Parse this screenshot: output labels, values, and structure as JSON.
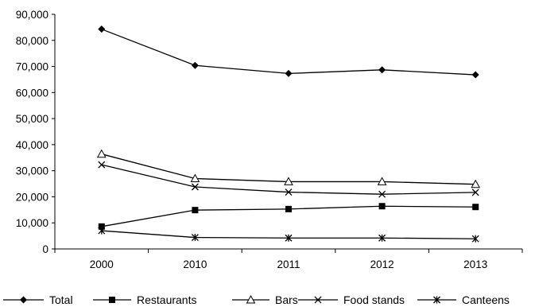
{
  "chart_data": {
    "type": "line",
    "title": "",
    "xlabel": "",
    "ylabel": "",
    "categories": [
      "2000",
      "2010",
      "2011",
      "2012",
      "2013"
    ],
    "ylim": [
      0,
      90000
    ],
    "yticks": [
      0,
      10000,
      20000,
      30000,
      40000,
      50000,
      60000,
      70000,
      80000,
      90000
    ],
    "ytick_labels": [
      "0",
      "10,000",
      "20,000",
      "30,000",
      "40,000",
      "50,000",
      "60,000",
      "70,000",
      "80,000",
      "90,000"
    ],
    "grid": false,
    "legend_position": "bottom",
    "series": [
      {
        "name": "Total",
        "marker": "diamond",
        "values": [
          84300,
          70400,
          67300,
          68700,
          66800
        ]
      },
      {
        "name": "Restaurants",
        "marker": "square",
        "values": [
          8600,
          14900,
          15300,
          16400,
          16100
        ]
      },
      {
        "name": "Bars",
        "marker": "triangle-open",
        "values": [
          36400,
          27000,
          25800,
          25800,
          24800
        ]
      },
      {
        "name": "Food stands",
        "marker": "x",
        "values": [
          32300,
          23800,
          21800,
          21000,
          21700
        ]
      },
      {
        "name": "Canteens",
        "marker": "asterisk",
        "values": [
          7000,
          4400,
          4200,
          4200,
          3900
        ]
      }
    ],
    "line_color": "#000000"
  }
}
